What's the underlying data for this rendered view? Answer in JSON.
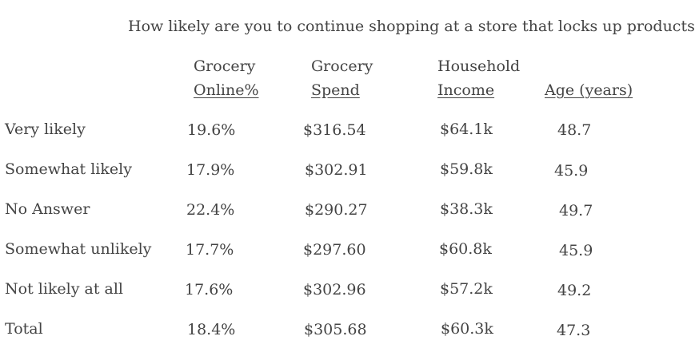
{
  "title": "How likely are you to continue shopping at a store that locks up products?",
  "columns": [
    {
      "line1": "Grocery",
      "line2": "Online%"
    },
    {
      "line1": "Grocery",
      "line2": "Spend"
    },
    {
      "line1": "Household",
      "line2": "Income"
    },
    {
      "line1": "",
      "line2": "Age (years)"
    }
  ],
  "rows": [
    {
      "label": "Very likely",
      "values": [
        "19.6%",
        "$316.54",
        "$64.1k",
        "48.7"
      ]
    },
    {
      "label": "Somewhat likely",
      "values": [
        "17.9%",
        "$302.91",
        "$59.8k",
        "45.9"
      ]
    },
    {
      "label": "No Answer",
      "values": [
        "22.4%",
        "$290.27",
        "$38.3k",
        "49.7"
      ]
    },
    {
      "label": "Somewhat unlikely",
      "values": [
        "17.7%",
        "$297.60",
        "$60.8k",
        "45.9"
      ]
    },
    {
      "label": "Not likely at all",
      "values": [
        "17.6%",
        "$302.96",
        "$57.2k",
        "49.2"
      ]
    },
    {
      "label": "Total",
      "values": [
        "18.4%",
        "$305.68",
        "$60.3k",
        "47.3"
      ]
    }
  ]
}
